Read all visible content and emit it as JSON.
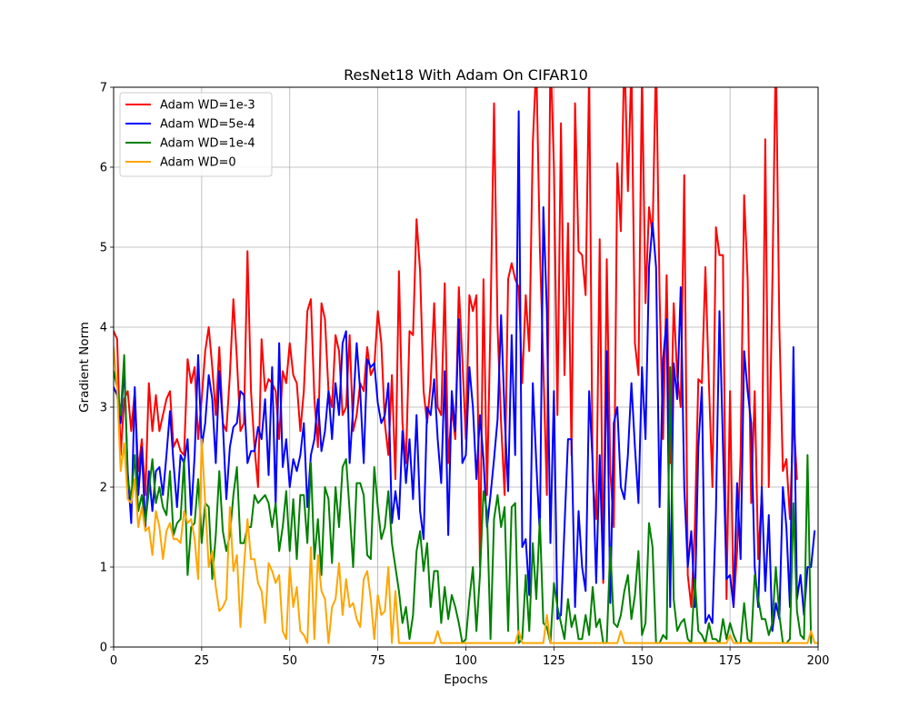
{
  "chart_data": {
    "type": "line",
    "title": "ResNet18 With Adam On CIFAR10",
    "xlabel": "Epochs",
    "ylabel": "Gradient Norm",
    "xlim": [
      0,
      200
    ],
    "ylim": [
      0,
      7
    ],
    "xticks": [
      0,
      25,
      50,
      75,
      100,
      125,
      150,
      175,
      200
    ],
    "yticks": [
      0,
      1,
      2,
      3,
      4,
      5,
      6,
      7
    ],
    "grid": true,
    "legend": "upper-left",
    "x": {
      "start": 0,
      "end": 200,
      "step": 1
    },
    "series": [
      {
        "name": "Adam WD=1e-3",
        "color": "#ff0000",
        "values": [
          3.95,
          3.85,
          2.4,
          3.1,
          3.2,
          2.7,
          3.2,
          2.2,
          2.6,
          1.9,
          3.3,
          2.7,
          3.15,
          2.7,
          2.9,
          3.1,
          3.2,
          2.5,
          2.6,
          2.45,
          2.4,
          3.6,
          3.3,
          3.5,
          2.6,
          3.1,
          3.7,
          4.0,
          3.5,
          2.9,
          3.75,
          2.8,
          2.7,
          3.4,
          4.35,
          3.6,
          2.7,
          2.8,
          4.95,
          3.2,
          2.5,
          2.0,
          3.85,
          3.2,
          3.35,
          3.3,
          3.2,
          2.6,
          3.45,
          3.3,
          3.8,
          3.4,
          3.3,
          2.7,
          3.2,
          4.2,
          4.35,
          3.1,
          2.5,
          4.3,
          4.1,
          3.2,
          3.0,
          3.9,
          3.7,
          2.9,
          3.0,
          3.9,
          2.7,
          2.9,
          3.3,
          3.2,
          3.75,
          3.4,
          3.5,
          4.2,
          3.8,
          2.8,
          2.4,
          3.4,
          2.1,
          4.7,
          2.8,
          2.3,
          3.95,
          3.9,
          5.35,
          4.7,
          3.2,
          2.8,
          3.3,
          4.3,
          3.0,
          2.9,
          4.55,
          2.3,
          3.0,
          2.6,
          4.5,
          3.6,
          2.6,
          4.4,
          4.2,
          4.4,
          1.0,
          4.6,
          1.9,
          4.1,
          6.8,
          4.0,
          2.8,
          1.9,
          4.6,
          4.8,
          4.6,
          4.5,
          3.3,
          4.4,
          3.7,
          6.3,
          7.3,
          5.0,
          3.5,
          1.9,
          7.5,
          6.0,
          2.9,
          6.55,
          3.4,
          5.3,
          2.4,
          6.8,
          4.95,
          4.9,
          4.4,
          7.2,
          2.1,
          1.6,
          5.1,
          0.8,
          4.85,
          2.2,
          1.5,
          6.05,
          5.2,
          7.5,
          5.7,
          7.3,
          3.8,
          3.4,
          7.2,
          4.3,
          5.5,
          5.15,
          7.4,
          4.4,
          2.6,
          4.65,
          2.3,
          4.3,
          3.4,
          3.0,
          5.9,
          0.9,
          0.5,
          1.5,
          3.35,
          3.3,
          4.75,
          3.3,
          2.0,
          5.25,
          4.9,
          4.9,
          0.6,
          3.2,
          0.5,
          1.2,
          2.4,
          5.65,
          4.6,
          1.8,
          3.2,
          1.1,
          1.9,
          6.35,
          2.0,
          4.5,
          7.5,
          4.0,
          2.2,
          2.35,
          1.6,
          2.9,
          2.1
        ]
      },
      {
        "name": "Adam WD=5e-4",
        "color": "#0000ff",
        "values": [
          3.25,
          3.15,
          2.8,
          3.5,
          2.2,
          1.55,
          3.25,
          1.9,
          2.5,
          1.5,
          2.2,
          1.7,
          2.2,
          2.25,
          1.9,
          2.4,
          2.95,
          2.3,
          1.75,
          2.4,
          2.3,
          2.6,
          1.65,
          2.4,
          3.65,
          2.5,
          2.8,
          3.4,
          3.1,
          2.3,
          3.45,
          2.8,
          1.85,
          2.5,
          2.75,
          2.8,
          3.2,
          3.15,
          2.3,
          2.45,
          2.45,
          2.75,
          2.6,
          3.1,
          2.15,
          3.5,
          1.75,
          3.8,
          2.25,
          2.6,
          2.0,
          2.35,
          2.2,
          2.4,
          2.8,
          1.75,
          2.4,
          2.6,
          3.1,
          2.45,
          2.7,
          3.2,
          2.6,
          3.3,
          2.9,
          3.8,
          3.95,
          2.3,
          3.0,
          3.8,
          3.2,
          2.3,
          3.6,
          3.5,
          3.55,
          3.05,
          2.8,
          2.9,
          3.3,
          1.55,
          1.95,
          1.6,
          2.7,
          2.05,
          2.6,
          1.85,
          2.9,
          1.7,
          1.35,
          3.0,
          2.9,
          3.35,
          2.6,
          2.05,
          3.45,
          1.4,
          3.2,
          2.7,
          4.1,
          2.3,
          2.4,
          3.5,
          3.0,
          2.1,
          2.9,
          2.35,
          1.5,
          1.9,
          2.35,
          2.85,
          4.15,
          2.9,
          1.95,
          3.9,
          2.4,
          6.7,
          1.25,
          1.35,
          0.65,
          3.3,
          2.3,
          1.4,
          5.5,
          4.2,
          1.3,
          3.2,
          0.35,
          0.4,
          1.5,
          2.6,
          2.6,
          0.5,
          1.7,
          1.0,
          0.7,
          3.2,
          2.3,
          0.8,
          2.4,
          0.85,
          3.7,
          0.55,
          2.8,
          3.0,
          2.0,
          1.85,
          2.4,
          3.3,
          2.5,
          1.8,
          3.5,
          2.6,
          4.75,
          5.3,
          4.75,
          1.75,
          3.6,
          4.1,
          0.5,
          3.55,
          3.1,
          4.5,
          2.0,
          1.0,
          1.45,
          0.5,
          2.5,
          3.25,
          0.3,
          0.4,
          0.3,
          1.7,
          4.2,
          2.5,
          0.85,
          0.9,
          0.5,
          2.05,
          1.1,
          3.7,
          3.2,
          2.8,
          1.0,
          0.5,
          2.0,
          0.7,
          1.65,
          0.2,
          0.55,
          0.35,
          2.0,
          1.5,
          0.5,
          3.75,
          0.6,
          0.9,
          0.4,
          1.0,
          1.0,
          1.45
        ]
      },
      {
        "name": "Adam WD=1e-4",
        "color": "#008000",
        "values": [
          3.45,
          3.25,
          2.9,
          3.65,
          2.1,
          1.85,
          2.4,
          1.7,
          1.9,
          1.55,
          1.95,
          2.35,
          1.8,
          2.0,
          1.75,
          1.65,
          2.2,
          1.4,
          1.55,
          1.6,
          2.35,
          0.9,
          1.5,
          1.55,
          2.1,
          1.3,
          1.8,
          1.75,
          0.85,
          1.4,
          2.2,
          1.45,
          1.2,
          1.4,
          1.9,
          2.25,
          1.3,
          1.3,
          1.5,
          1.5,
          1.9,
          1.8,
          1.85,
          1.9,
          1.8,
          1.5,
          1.8,
          1.2,
          1.5,
          1.95,
          1.2,
          1.85,
          1.1,
          1.9,
          1.9,
          1.3,
          2.3,
          1.1,
          1.6,
          0.9,
          2.0,
          1.85,
          1.05,
          2.0,
          1.5,
          2.25,
          2.35,
          1.7,
          1.0,
          2.05,
          2.05,
          1.9,
          1.15,
          1.1,
          2.25,
          1.75,
          1.35,
          1.5,
          1.95,
          1.3,
          1.0,
          0.7,
          0.3,
          0.5,
          0.1,
          0.4,
          1.2,
          1.45,
          0.95,
          1.3,
          0.5,
          0.95,
          0.95,
          0.3,
          0.75,
          0.35,
          0.65,
          0.5,
          0.3,
          0.05,
          0.1,
          0.6,
          1.0,
          0.2,
          0.9,
          1.95,
          1.7,
          0.1,
          1.6,
          1.9,
          1.5,
          1.75,
          0.2,
          1.75,
          1.8,
          0.05,
          0.1,
          0.9,
          0.2,
          1.3,
          0.6,
          1.6,
          0.3,
          0.25,
          0.05,
          0.8,
          0.5,
          0.3,
          0.1,
          0.6,
          0.25,
          0.4,
          0.1,
          0.1,
          0.4,
          0.15,
          0.75,
          0.25,
          0.35,
          0.05,
          0.05,
          1.25,
          0.3,
          0.25,
          0.4,
          0.7,
          0.9,
          0.35,
          0.65,
          1.2,
          0.15,
          0.3,
          1.55,
          1.25,
          0.05,
          0.05,
          0.15,
          0.1,
          3.5,
          0.6,
          0.2,
          0.3,
          0.35,
          0.1,
          0.05,
          0.85,
          0.2,
          0.15,
          0.05,
          0.3,
          0.1,
          0.1,
          0.05,
          0.35,
          0.1,
          0.3,
          0.15,
          0.05,
          0.05,
          0.55,
          0.1,
          0.05,
          0.9,
          0.6,
          0.35,
          0.35,
          0.15,
          0.3,
          1.0,
          0.4,
          0.05,
          0.05,
          0.1,
          1.8,
          0.45,
          0.15,
          0.1,
          2.4,
          0.05
        ]
      },
      {
        "name": "Adam WD=0",
        "color": "#ffa500",
        "values": [
          3.75,
          3.25,
          2.2,
          2.55,
          1.85,
          1.8,
          2.1,
          1.5,
          1.75,
          1.45,
          1.5,
          1.15,
          1.7,
          1.5,
          1.1,
          1.45,
          1.55,
          1.35,
          1.35,
          1.3,
          1.7,
          1.55,
          1.6,
          1.35,
          0.85,
          2.6,
          1.8,
          1.0,
          1.2,
          0.75,
          0.45,
          0.5,
          0.6,
          1.75,
          0.95,
          1.15,
          0.25,
          1.0,
          1.6,
          1.1,
          1.1,
          0.8,
          0.7,
          0.3,
          1.05,
          0.95,
          0.8,
          0.9,
          0.2,
          0.1,
          1.0,
          0.5,
          0.75,
          0.2,
          0.15,
          0.05,
          1.25,
          0.1,
          1.15,
          0.7,
          0.6,
          0.05,
          0.5,
          0.6,
          1.05,
          0.4,
          0.85,
          0.5,
          0.55,
          0.35,
          0.25,
          0.85,
          0.95,
          0.6,
          0.1,
          0.65,
          0.4,
          0.45,
          1.0,
          0.05,
          0.7,
          0.05,
          0.05,
          0.05,
          0.05,
          0.05,
          0.05,
          0.05,
          0.05,
          0.05,
          0.05,
          0.05,
          0.2,
          0.05,
          0.05,
          0.05,
          0.05,
          0.05,
          0.05,
          0.05,
          0.05,
          0.05,
          0.05,
          0.05,
          0.05,
          0.05,
          0.05,
          0.05,
          0.05,
          0.05,
          0.05,
          0.05,
          0.05,
          0.05,
          0.05,
          0.2,
          0.05,
          0.05,
          0.05,
          0.05,
          0.05,
          0.05,
          0.05,
          0.4,
          0.05,
          0.05,
          0.05,
          0.05,
          0.05,
          0.05,
          0.05,
          0.05,
          0.05,
          0.05,
          0.05,
          0.05,
          0.05,
          0.05,
          0.05,
          0.05,
          0.05,
          0.05,
          0.05,
          0.05,
          0.2,
          0.05,
          0.05,
          0.05,
          0.05,
          0.05,
          0.05,
          0.05,
          0.05,
          0.05,
          0.05,
          0.05,
          0.05,
          0.05,
          0.05,
          0.05,
          0.05,
          0.05,
          0.05,
          0.05,
          0.05,
          0.05,
          0.05,
          0.05,
          0.05,
          0.05,
          0.05,
          0.05,
          0.05,
          0.05,
          0.05,
          0.15,
          0.05,
          0.05,
          0.05,
          0.05,
          0.05,
          0.05,
          0.05,
          0.05,
          0.05,
          0.05,
          0.05,
          0.05,
          0.05,
          0.05,
          0.05,
          0.05,
          0.05,
          0.05,
          0.05,
          0.05,
          0.05,
          0.05,
          0.2,
          0.05,
          0.05,
          0.05,
          0.05
        ]
      }
    ]
  }
}
